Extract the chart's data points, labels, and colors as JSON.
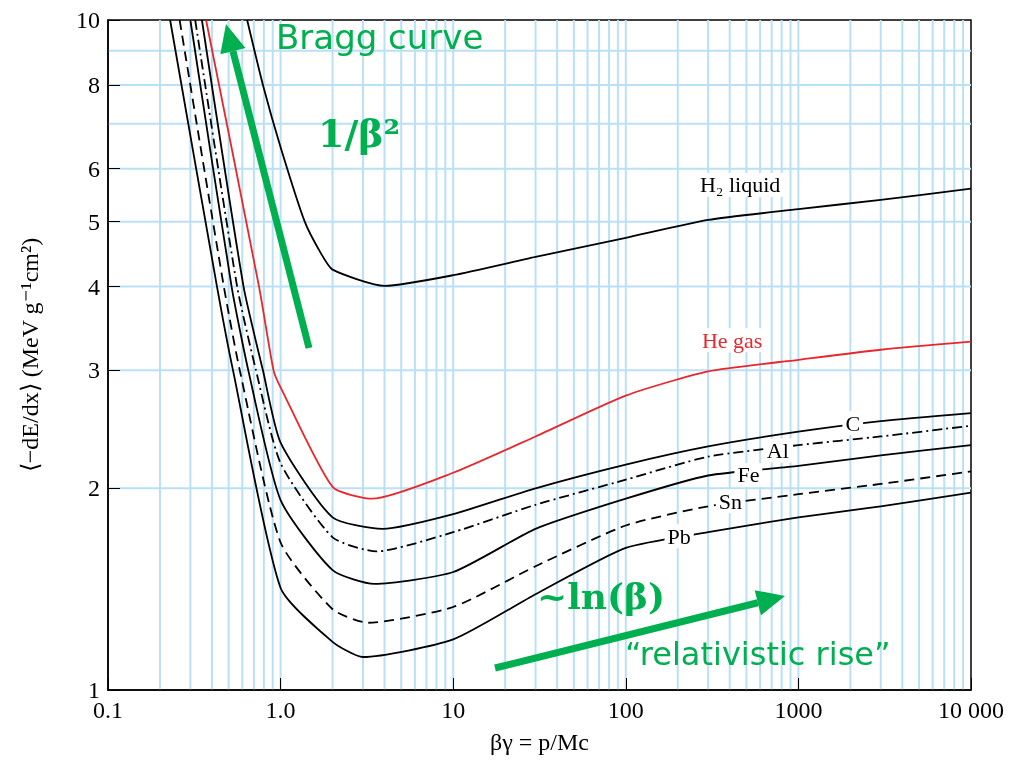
{
  "chart_data": {
    "type": "line",
    "xlabel": "βγ = p/Mc",
    "ylabel": "⟨−dE/dx⟩ (MeV g⁻¹cm²)",
    "log": "xy",
    "xlim": [
      0.1,
      10000
    ],
    "xticks": [
      0.1,
      {
        "value": 1,
        "label": "1.0"
      },
      10,
      100,
      1000,
      {
        "value": 10000,
        "label": "10 000"
      }
    ],
    "ylim": [
      1,
      10
    ],
    "yticks": [
      1,
      2,
      3,
      4,
      5,
      6,
      8,
      10
    ],
    "grid": true,
    "legend": false,
    "marker": "none",
    "annotations": [
      "Bragg curve",
      "1/β²",
      "~ln(β)",
      "“relativistic rise”"
    ],
    "series": [
      {
        "name": "H₂ liquid",
        "color": "#000000",
        "line_style": "solid",
        "x": [
          0.64,
          0.79,
          1,
          1.38,
          1.7,
          2,
          4,
          10,
          30,
          100,
          300,
          1000,
          3000,
          10000
        ],
        "values": [
          10,
          8,
          6.46,
          5,
          4.5,
          4.24,
          4.01,
          4.16,
          4.43,
          4.73,
          5.03,
          5.22,
          5.39,
          5.6
        ]
      },
      {
        "name": "He gas",
        "color": "#e8262b",
        "line_style": "solid",
        "x": [
          0.37,
          0.75,
          0.91,
          1,
          2,
          3.4,
          10,
          30,
          100,
          300,
          1000,
          3000,
          10000
        ],
        "values": [
          10,
          4,
          3,
          2.83,
          2.01,
          1.93,
          2.11,
          2.39,
          2.75,
          2.99,
          3.11,
          3.22,
          3.31
        ]
      },
      {
        "name": "C",
        "color": "#000000",
        "line_style": "solid",
        "x": [
          0.35,
          0.61,
          0.79,
          1,
          2,
          3.9,
          10,
          30,
          100,
          300,
          1000,
          3000,
          10000
        ],
        "values": [
          10,
          4,
          3,
          2.34,
          1.81,
          1.74,
          1.83,
          2.0,
          2.17,
          2.31,
          2.43,
          2.52,
          2.59
        ]
      },
      {
        "name": "Al",
        "color": "#000000",
        "line_style": "dashdot",
        "x": [
          0.32,
          0.56,
          0.72,
          1,
          2,
          3.6,
          10,
          30,
          100,
          300,
          1000,
          3000,
          10000
        ],
        "values": [
          10,
          4,
          3,
          2.18,
          1.69,
          1.61,
          1.72,
          1.89,
          2.06,
          2.23,
          2.32,
          2.39,
          2.48
        ]
      },
      {
        "name": "Fe",
        "color": "#000000",
        "line_style": "solid",
        "x": [
          0.3,
          0.52,
          0.65,
          1,
          2,
          3.5,
          10,
          30,
          100,
          300,
          1000,
          3000,
          10000
        ],
        "values": [
          10,
          4,
          3,
          1.92,
          1.51,
          1.44,
          1.5,
          1.74,
          1.93,
          2.09,
          2.16,
          2.24,
          2.32
        ]
      },
      {
        "name": "Sn",
        "color": "#000000",
        "line_style": "dashed",
        "x": [
          0.26,
          0.469,
          0.58,
          1,
          2,
          3.2,
          10,
          30,
          100,
          300,
          1000,
          3000,
          10000
        ],
        "values": [
          10,
          4,
          3,
          1.66,
          1.32,
          1.26,
          1.33,
          1.53,
          1.76,
          1.88,
          1.96,
          2.03,
          2.12
        ]
      },
      {
        "name": "Pb",
        "color": "#000000",
        "line_style": "solid",
        "x": [
          0.229,
          0.428,
          0.53,
          1,
          2,
          3,
          10,
          30,
          100,
          300,
          1000,
          3000,
          10000
        ],
        "values": [
          10,
          4,
          3,
          1.42,
          1.18,
          1.12,
          1.19,
          1.39,
          1.63,
          1.72,
          1.81,
          1.88,
          1.97
        ]
      }
    ]
  }
}
